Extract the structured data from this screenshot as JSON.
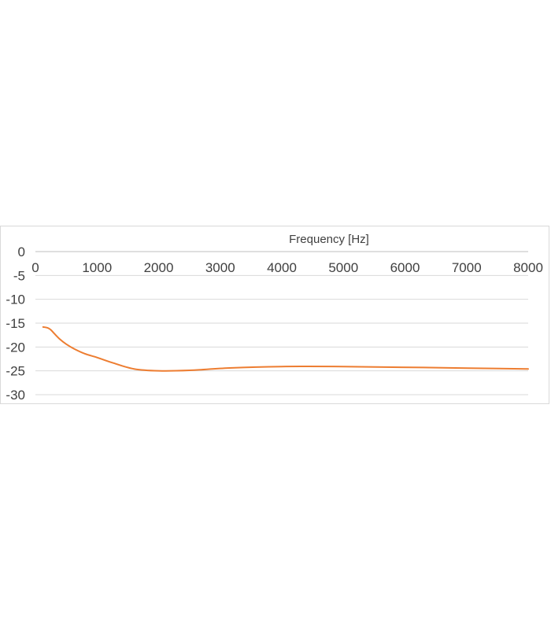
{
  "chart_data": {
    "type": "line",
    "xlabel": "Frequency [Hz]",
    "ylabel": "",
    "title": "",
    "xlim": [
      0,
      8000
    ],
    "ylim": [
      -30,
      0
    ],
    "x_ticks": [
      0,
      1000,
      2000,
      3000,
      4000,
      5000,
      6000,
      7000,
      8000
    ],
    "y_ticks": [
      0,
      -5,
      -10,
      -15,
      -20,
      -25,
      -30
    ],
    "x_axis_position": "top",
    "grid": true,
    "series": [
      {
        "color": "#ed7d31",
        "x": [
          125,
          200,
          250,
          315,
          400,
          500,
          630,
          800,
          1000,
          1250,
          1600,
          2000,
          2500,
          3150,
          4000,
          5000,
          6300,
          8000
        ],
        "y": [
          -15.8,
          -16.0,
          -16.4,
          -17.3,
          -18.4,
          -19.4,
          -20.4,
          -21.4,
          -22.2,
          -23.3,
          -24.6,
          -25.0,
          -24.9,
          -24.4,
          -24.1,
          -24.1,
          -24.3,
          -24.6
        ]
      }
    ]
  }
}
